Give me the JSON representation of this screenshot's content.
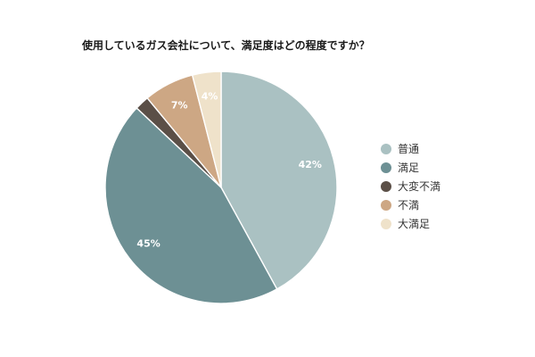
{
  "chart_data": {
    "type": "pie",
    "title": "使用しているガス会社について、満足度はどの程度ですか？",
    "categories": [
      "普通",
      "満足",
      "大変不満",
      "不満",
      "大満足"
    ],
    "values": [
      42,
      45,
      2,
      7,
      4
    ],
    "data_labels": [
      "42%",
      "45%",
      "",
      "7%",
      "4%"
    ],
    "colors": [
      "#aac1c2",
      "#6d9094",
      "#5b4f47",
      "#cda784",
      "#efe2ca"
    ],
    "start": "top",
    "direction": "clockwise",
    "legend_position": "right"
  }
}
